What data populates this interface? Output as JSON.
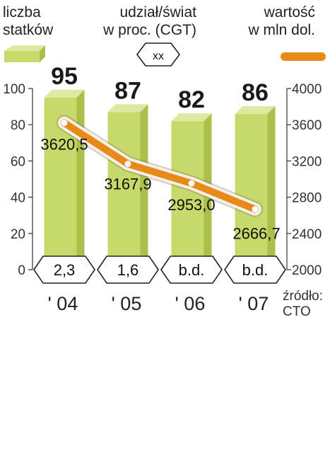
{
  "legend": {
    "bars_line1": "liczba",
    "bars_line2": "statków",
    "share_line1": "udział/świat",
    "share_line2": "w proc. (CGT)",
    "share_symbol": "xx",
    "line_line1": "wartość",
    "line_line2": "w mln dol."
  },
  "source": {
    "line1": "źródło:",
    "line2": "CTO"
  },
  "colors": {
    "bar_front": "#c6d96b",
    "bar_side": "#aac04a",
    "bar_top": "#dde9a0",
    "line": "#e88a1a",
    "line_halo": "#f4f0ea"
  },
  "chart_data": {
    "type": "bar",
    "categories": [
      "' 04",
      "' 05",
      "' 06",
      "' 07"
    ],
    "left_axis": {
      "ticks": [
        "0",
        "20",
        "40",
        "60",
        "80",
        "100"
      ],
      "ylim": [
        0,
        100
      ]
    },
    "right_axis": {
      "ticks": [
        "2000",
        "2400",
        "2800",
        "3200",
        "3600",
        "4000"
      ],
      "ylim": [
        2000,
        4000
      ]
    },
    "bars": {
      "values": [
        95,
        87,
        82,
        86
      ],
      "labels": [
        "95",
        "87",
        "82",
        "86"
      ]
    },
    "line": {
      "values": [
        3620.5,
        3167.9,
        2953.0,
        2666.7
      ],
      "labels": [
        "3620,5",
        "3167,9",
        "2953,0",
        "2666,7"
      ]
    },
    "share": [
      "2,3",
      "1,6",
      "b.d.",
      "b.d."
    ]
  }
}
